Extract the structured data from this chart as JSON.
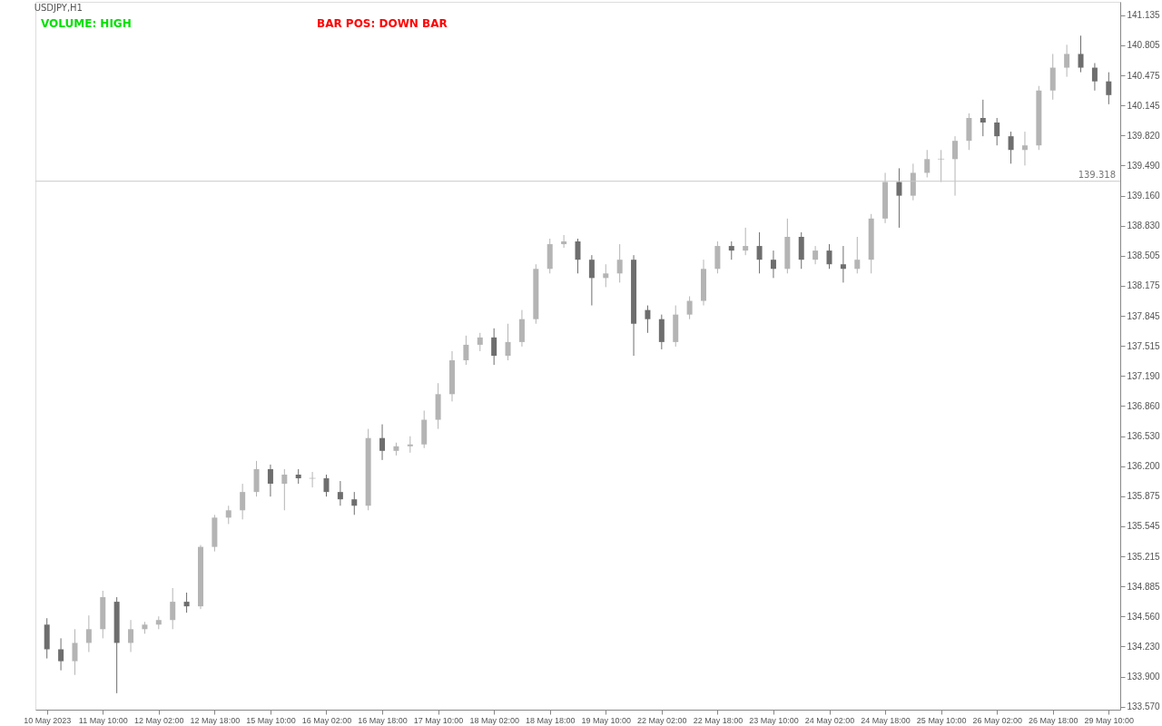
{
  "chart_data": {
    "type": "candlestick",
    "title": "USDJPY,H1",
    "annotations": [
      "VOLUME: HIGH",
      "BAR POS: DOWN BAR"
    ],
    "categories": [
      "10 May 2023",
      null,
      null,
      null,
      "11 May 10:00",
      null,
      null,
      null,
      "12 May 02:00",
      null,
      null,
      null,
      "12 May 18:00",
      null,
      null,
      null,
      "15 May 10:00",
      null,
      null,
      null,
      "16 May 02:00",
      null,
      null,
      null,
      "16 May 18:00",
      null,
      null,
      null,
      "17 May 10:00",
      null,
      null,
      null,
      "18 May 02:00",
      null,
      null,
      null,
      "18 May 18:00",
      null,
      null,
      null,
      "19 May 10:00",
      null,
      null,
      null,
      "22 May 02:00",
      null,
      null,
      null,
      "22 May 18:00",
      null,
      null,
      null,
      "23 May 10:00",
      null,
      null,
      null,
      "24 May 02:00",
      null,
      null,
      null,
      "24 May 18:00",
      null,
      null,
      null,
      "25 May 10:00",
      null,
      null,
      null,
      "26 May 02:00",
      null,
      null,
      null,
      "26 May 18:00",
      null,
      null,
      null,
      "29 May 10:00"
    ],
    "ohlc": [
      [
        134.47,
        134.54,
        134.1,
        134.2
      ],
      [
        134.2,
        134.32,
        133.97,
        134.07
      ],
      [
        134.07,
        134.42,
        133.92,
        134.27
      ],
      [
        134.27,
        134.57,
        134.17,
        134.42
      ],
      [
        134.42,
        134.84,
        134.32,
        134.77
      ],
      [
        134.72,
        134.77,
        133.72,
        134.27
      ],
      [
        134.27,
        134.52,
        134.17,
        134.42
      ],
      [
        134.42,
        134.5,
        134.37,
        134.47
      ],
      [
        134.47,
        134.56,
        134.42,
        134.52
      ],
      [
        134.52,
        134.87,
        134.42,
        134.72
      ],
      [
        134.72,
        134.82,
        134.6,
        134.67
      ],
      [
        134.67,
        135.34,
        134.64,
        135.32
      ],
      [
        135.32,
        135.67,
        135.27,
        135.64
      ],
      [
        135.64,
        135.77,
        135.57,
        135.72
      ],
      [
        135.72,
        136.01,
        135.62,
        135.92
      ],
      [
        135.92,
        136.26,
        135.87,
        136.17
      ],
      [
        136.17,
        136.22,
        135.87,
        136.01
      ],
      [
        136.01,
        136.17,
        135.72,
        136.11
      ],
      [
        136.11,
        136.17,
        136.01,
        136.07
      ],
      [
        136.07,
        136.14,
        135.97,
        136.07
      ],
      [
        136.07,
        136.11,
        135.87,
        135.92
      ],
      [
        135.92,
        136.04,
        135.77,
        135.84
      ],
      [
        135.84,
        135.92,
        135.67,
        135.77
      ],
      [
        135.77,
        136.61,
        135.72,
        136.51
      ],
      [
        136.51,
        136.66,
        136.27,
        136.37
      ],
      [
        136.37,
        136.46,
        136.32,
        136.42
      ],
      [
        136.42,
        136.53,
        136.35,
        136.44
      ],
      [
        136.44,
        136.81,
        136.4,
        136.71
      ],
      [
        136.71,
        137.11,
        136.61,
        136.99
      ],
      [
        136.99,
        137.46,
        136.91,
        137.36
      ],
      [
        137.36,
        137.63,
        137.31,
        137.53
      ],
      [
        137.53,
        137.66,
        137.46,
        137.61
      ],
      [
        137.61,
        137.71,
        137.31,
        137.41
      ],
      [
        137.41,
        137.76,
        137.36,
        137.56
      ],
      [
        137.56,
        137.91,
        137.51,
        137.81
      ],
      [
        137.81,
        138.41,
        137.76,
        138.36
      ],
      [
        138.36,
        138.69,
        138.31,
        138.63
      ],
      [
        138.63,
        138.73,
        138.59,
        138.66
      ],
      [
        138.66,
        138.69,
        138.31,
        138.46
      ],
      [
        138.46,
        138.51,
        137.96,
        138.26
      ],
      [
        138.26,
        138.41,
        138.16,
        138.31
      ],
      [
        138.31,
        138.63,
        138.21,
        138.46
      ],
      [
        138.46,
        138.51,
        137.41,
        137.76
      ],
      [
        137.91,
        137.96,
        137.66,
        137.81
      ],
      [
        137.81,
        137.86,
        137.48,
        137.56
      ],
      [
        137.56,
        137.96,
        137.51,
        137.86
      ],
      [
        137.86,
        138.06,
        137.81,
        138.01
      ],
      [
        138.01,
        138.46,
        137.96,
        138.36
      ],
      [
        138.36,
        138.66,
        138.31,
        138.61
      ],
      [
        138.61,
        138.66,
        138.46,
        138.56
      ],
      [
        138.56,
        138.81,
        138.51,
        138.61
      ],
      [
        138.61,
        138.76,
        138.31,
        138.46
      ],
      [
        138.46,
        138.56,
        138.26,
        138.36
      ],
      [
        138.36,
        138.91,
        138.31,
        138.71
      ],
      [
        138.71,
        138.76,
        138.36,
        138.46
      ],
      [
        138.46,
        138.61,
        138.41,
        138.56
      ],
      [
        138.56,
        138.63,
        138.36,
        138.41
      ],
      [
        138.41,
        138.61,
        138.21,
        138.36
      ],
      [
        138.36,
        138.71,
        138.31,
        138.46
      ],
      [
        138.46,
        138.96,
        138.31,
        138.91
      ],
      [
        138.91,
        139.41,
        138.86,
        139.31
      ],
      [
        139.31,
        139.46,
        138.81,
        139.16
      ],
      [
        139.16,
        139.51,
        139.11,
        139.41
      ],
      [
        139.41,
        139.66,
        139.36,
        139.56
      ],
      [
        139.56,
        139.66,
        139.31,
        139.56
      ],
      [
        139.56,
        139.81,
        139.16,
        139.76
      ],
      [
        139.76,
        140.06,
        139.66,
        140.01
      ],
      [
        140.01,
        140.21,
        139.81,
        139.96
      ],
      [
        139.96,
        140.01,
        139.71,
        139.81
      ],
      [
        139.81,
        139.86,
        139.51,
        139.66
      ],
      [
        139.66,
        139.86,
        139.49,
        139.71
      ],
      [
        139.71,
        140.36,
        139.66,
        140.31
      ],
      [
        140.31,
        140.71,
        140.21,
        140.56
      ],
      [
        140.56,
        140.81,
        140.46,
        140.71
      ],
      [
        140.71,
        140.91,
        140.51,
        140.56
      ],
      [
        140.56,
        140.61,
        140.31,
        140.41
      ],
      [
        140.41,
        140.51,
        140.16,
        140.26
      ]
    ],
    "colors": [
      "#6e6e6e",
      "#6e6e6e",
      "#b4b4b4",
      "#b4b4b4",
      "#b4b4b4",
      "#6e6e6e",
      "#b4b4b4",
      "#b4b4b4",
      "#b4b4b4",
      "#b4b4b4",
      "#6e6e6e",
      "#b4b4b4",
      "#b4b4b4",
      "#b4b4b4",
      "#b4b4b4",
      "#b4b4b4",
      "#6e6e6e",
      "#b4b4b4",
      "#6e6e6e",
      "#b4b4b4",
      "#6e6e6e",
      "#6e6e6e",
      "#6e6e6e",
      "#b4b4b4",
      "#6e6e6e",
      "#b4b4b4",
      "#b4b4b4",
      "#b4b4b4",
      "#b4b4b4",
      "#b4b4b4",
      "#b4b4b4",
      "#b4b4b4",
      "#6e6e6e",
      "#b4b4b4",
      "#b4b4b4",
      "#b4b4b4",
      "#b4b4b4",
      "#b4b4b4",
      "#6e6e6e",
      "#6e6e6e",
      "#b4b4b4",
      "#b4b4b4",
      "#6e6e6e",
      "#6e6e6e",
      "#6e6e6e",
      "#b4b4b4",
      "#b4b4b4",
      "#b4b4b4",
      "#b4b4b4",
      "#6e6e6e",
      "#b4b4b4",
      "#6e6e6e",
      "#6e6e6e",
      "#b4b4b4",
      "#6e6e6e",
      "#b4b4b4",
      "#6e6e6e",
      "#6e6e6e",
      "#b4b4b4",
      "#b4b4b4",
      "#b4b4b4",
      "#6e6e6e",
      "#b4b4b4",
      "#b4b4b4",
      "#b4b4b4",
      "#b4b4b4",
      "#b4b4b4",
      "#6e6e6e",
      "#6e6e6e",
      "#6e6e6e",
      "#b4b4b4",
      "#b4b4b4",
      "#b4b4b4",
      "#b4b4b4",
      "#6e6e6e",
      "#6e6e6e",
      "#6e6e6e"
    ],
    "ylim": [
      133.54,
      141.28
    ],
    "yticks": [
      {
        "value": 133.57,
        "label": "133.570"
      },
      {
        "value": 133.9,
        "label": "133.900"
      },
      {
        "value": 134.23,
        "label": "134.230"
      },
      {
        "value": 134.56,
        "label": "134.560"
      },
      134.885,
      135.215,
      135.545,
      135.875,
      {
        "value": 136.2,
        "label": "136.200"
      },
      {
        "value": 136.53,
        "label": "136.530"
      },
      {
        "value": 136.86,
        "label": "136.860"
      },
      {
        "value": 137.19,
        "label": "137.190"
      },
      137.515,
      137.845,
      138.175,
      138.505,
      {
        "value": 138.83,
        "label": "138.830"
      },
      {
        "value": 139.16,
        "label": "139.160"
      },
      {
        "value": 139.49,
        "label": "139.490"
      },
      {
        "value": 139.82,
        "label": "139.820"
      },
      140.145,
      140.475,
      140.805,
      141.135
    ],
    "ref_lines": [
      {
        "axis": "y",
        "value": 139.318,
        "label": "139.318",
        "color": "#c8c8c8"
      }
    ],
    "grid": false
  }
}
